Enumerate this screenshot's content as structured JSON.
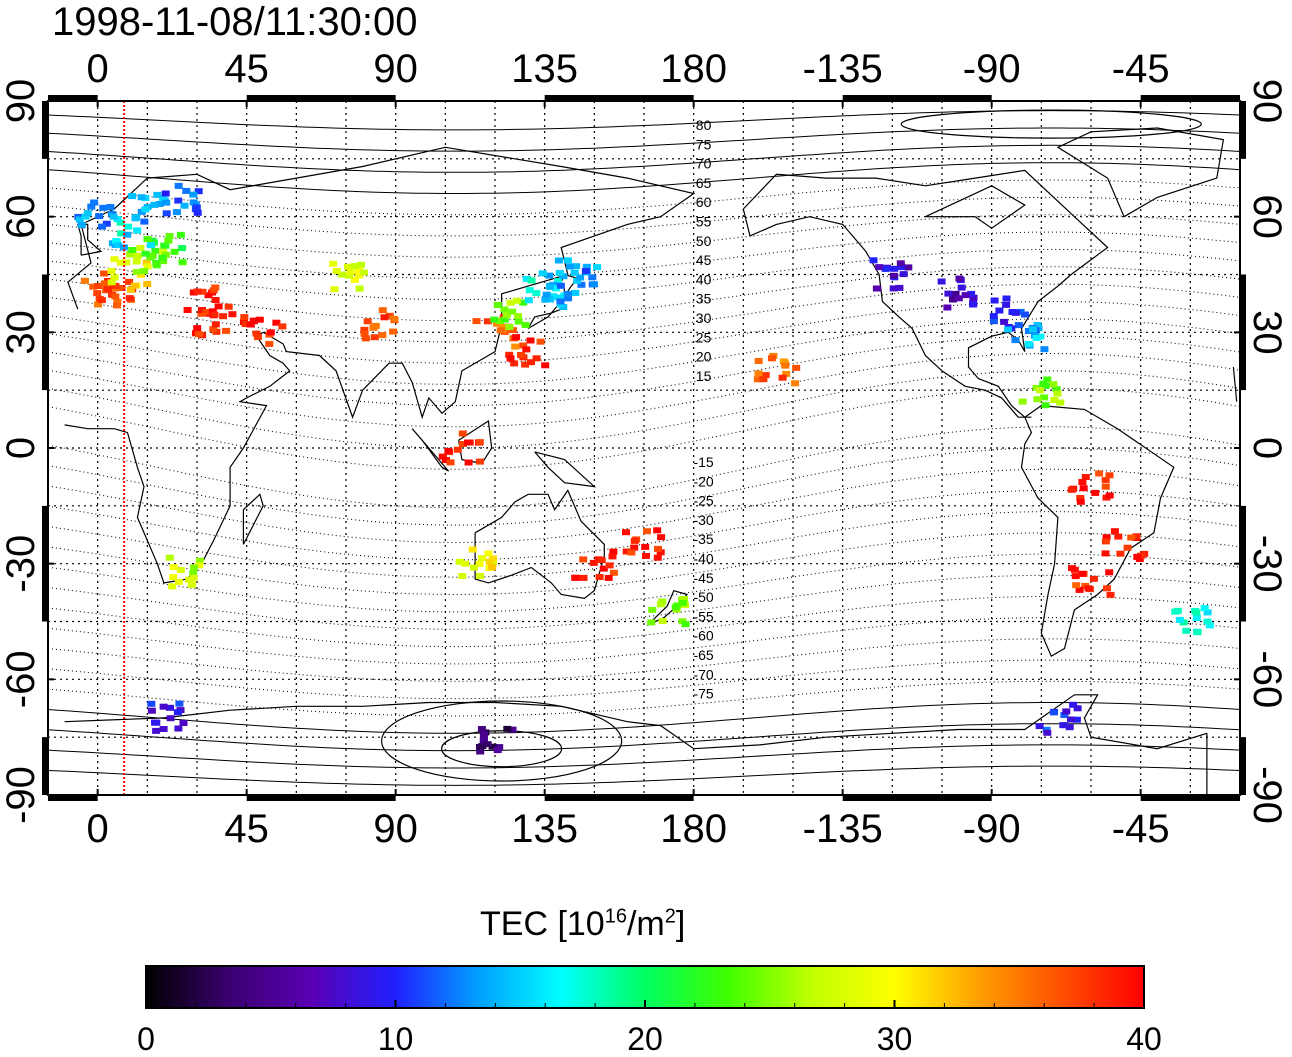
{
  "title": "1998-11-08/11:30:00",
  "map": {
    "projection": "equirectangular",
    "center_longitude": 165,
    "longitude_range": [
      -15,
      345
    ],
    "latitude_range": [
      -90,
      90
    ],
    "grid": true,
    "top_axis_ticks": [
      "0",
      "45",
      "90",
      "135",
      "180",
      "-135",
      "-90",
      "-45"
    ],
    "bottom_axis_ticks": [
      "0",
      "45",
      "90",
      "135",
      "180",
      "-135",
      "-90",
      "-45"
    ],
    "left_axis_ticks": [
      "90",
      "60",
      "30",
      "0",
      "-30",
      "-60",
      "-90"
    ],
    "right_axis_ticks": [
      "90",
      "60",
      "30",
      "0",
      "-30",
      "-60",
      "-90"
    ],
    "contour_labels_north": [
      "80",
      "75",
      "70",
      "65",
      "60",
      "55",
      "50",
      "45",
      "40",
      "35",
      "30",
      "25",
      "20",
      "15"
    ],
    "contour_labels_south": [
      "-15",
      "-20",
      "-25",
      "-30",
      "-35",
      "-40",
      "-45",
      "-50",
      "-55",
      "-60",
      "-65",
      "-70",
      "-75"
    ],
    "sun_marker_longitude": 8
  },
  "colorbar": {
    "title_text": "TEC  [10",
    "title_sup1": "16",
    "title_mid": "/m",
    "title_sup2": "2",
    "title_end": "]",
    "min": 0,
    "max": 40,
    "tick_labels": [
      "0",
      "10",
      "20",
      "30",
      "40"
    ],
    "colors": [
      "#000000",
      "#3a0070",
      "#5a00b4",
      "#2020ff",
      "#00a0ff",
      "#00ffff",
      "#00ff60",
      "#40ff00",
      "#c0ff00",
      "#ffff00",
      "#ffa000",
      "#ff5000",
      "#ff0000"
    ]
  },
  "chart_data": {
    "type": "heatmap",
    "title": "1998-11-08/11:30:00",
    "value_label": "TEC  [10^16/m^2]",
    "value_range": [
      0,
      40
    ],
    "points": [
      {
        "lon": 2,
        "lat": 40,
        "tec": 36
      },
      {
        "lon": 5,
        "lat": 42,
        "tec": 37
      },
      {
        "lon": 10,
        "lat": 45,
        "tec": 30
      },
      {
        "lon": 15,
        "lat": 48,
        "tec": 25
      },
      {
        "lon": 20,
        "lat": 52,
        "tec": 22
      },
      {
        "lon": 10,
        "lat": 56,
        "tec": 16
      },
      {
        "lon": 15,
        "lat": 62,
        "tec": 13
      },
      {
        "lon": 25,
        "lat": 65,
        "tec": 12
      },
      {
        "lon": 30,
        "lat": 38,
        "tec": 39
      },
      {
        "lon": 35,
        "lat": 33,
        "tec": 39
      },
      {
        "lon": 50,
        "lat": 30,
        "tec": 39
      },
      {
        "lon": 75,
        "lat": 45,
        "tec": 28
      },
      {
        "lon": 85,
        "lat": 32,
        "tec": 37
      },
      {
        "lon": 120,
        "lat": 30,
        "tec": 36
      },
      {
        "lon": 125,
        "lat": 35,
        "tec": 25
      },
      {
        "lon": 135,
        "lat": 40,
        "tec": 16
      },
      {
        "lon": 140,
        "lat": 42,
        "tec": 14
      },
      {
        "lon": 145,
        "lat": 45,
        "tec": 13
      },
      {
        "lon": 130,
        "lat": 25,
        "tec": 39
      },
      {
        "lon": 110,
        "lat": 0,
        "tec": 39
      },
      {
        "lon": 115,
        "lat": -30,
        "tec": 30
      },
      {
        "lon": 150,
        "lat": -30,
        "tec": 39
      },
      {
        "lon": 165,
        "lat": -25,
        "tec": 39
      },
      {
        "lon": 172,
        "lat": -42,
        "tec": 25
      },
      {
        "lon": 205,
        "lat": 20,
        "tec": 36
      },
      {
        "lon": -120,
        "lat": 45,
        "tec": 8
      },
      {
        "lon": -100,
        "lat": 40,
        "tec": 7
      },
      {
        "lon": -85,
        "lat": 35,
        "tec": 10
      },
      {
        "lon": -80,
        "lat": 28,
        "tec": 14
      },
      {
        "lon": -75,
        "lat": 15,
        "tec": 25
      },
      {
        "lon": -60,
        "lat": -10,
        "tec": 39
      },
      {
        "lon": -50,
        "lat": -25,
        "tec": 39
      },
      {
        "lon": -60,
        "lat": -35,
        "tec": 38
      },
      {
        "lon": -70,
        "lat": -70,
        "tec": 10
      },
      {
        "lon": 120,
        "lat": -75,
        "tec": 4
      },
      {
        "lon": 20,
        "lat": -70,
        "tec": 9
      },
      {
        "lon": 25,
        "lat": -32,
        "tec": 27
      },
      {
        "lon": 0,
        "lat": 60,
        "tec": 13
      },
      {
        "lon": -30,
        "lat": -45,
        "tec": 17
      }
    ]
  }
}
